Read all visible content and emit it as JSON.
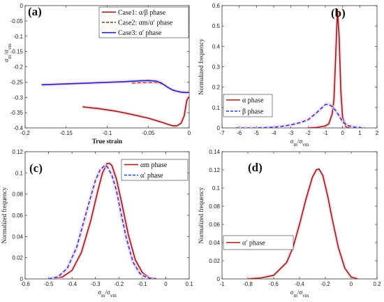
{
  "colors": {
    "dark_red": "#9b1c14",
    "blue_dash": "#1f3fd6",
    "blue": "#2020c8",
    "pink_glow": "#f4c6d8"
  },
  "chart_data": [
    {
      "panel": "(a)",
      "type": "line",
      "xlabel": "True strain",
      "ylabel_num": "σ",
      "ylabel_num_sub": "m",
      "ylabel_den": "/σ",
      "ylabel_den_sub": "vm",
      "xlim": [
        -0.2,
        0
      ],
      "ylim": [
        -0.4,
        0
      ],
      "xticks": [
        -0.2,
        -0.15,
        -0.1,
        -0.05,
        0
      ],
      "xtick_labels": [
        "-0.2",
        "-0.15",
        "-0.1",
        "-0.05",
        "0"
      ],
      "yticks": [
        -0.4,
        -0.35,
        -0.3,
        -0.25,
        -0.2,
        -0.15,
        -0.1,
        -0.05,
        0
      ],
      "ytick_labels": [
        "-0.4",
        "-0.35",
        "-0.3",
        "-0.25",
        "-0.2",
        "-0.15",
        "-0.1",
        "-0.05",
        "0"
      ],
      "legend": [
        {
          "label": "Case1: α/β  phase",
          "color": "#9b1c14",
          "dash": false
        },
        {
          "label": "Case2: αm/α′ phase",
          "color": "#7a3010",
          "dash": true
        },
        {
          "label": "Case3:   α′  phase",
          "color": "#2020c8",
          "dash": false
        }
      ],
      "series": [
        {
          "name": "Case1: α/β  phase",
          "color": "#9b1c14",
          "dash": false,
          "x": [
            -0.13,
            -0.11,
            -0.09,
            -0.07,
            -0.05,
            -0.035,
            -0.025,
            -0.02,
            -0.015,
            -0.01,
            -0.006,
            -0.003,
            0
          ],
          "y": [
            -0.331,
            -0.337,
            -0.345,
            -0.356,
            -0.368,
            -0.38,
            -0.389,
            -0.393,
            -0.393,
            -0.385,
            -0.36,
            -0.31,
            -0.298
          ]
        },
        {
          "name": "Case2: αm/α′ phase",
          "color": "#7a3010",
          "dash": true,
          "x": [
            -0.07,
            -0.06,
            -0.05,
            -0.04,
            -0.032
          ],
          "y": [
            -0.253,
            -0.252,
            -0.251,
            -0.252,
            -0.256
          ]
        },
        {
          "name": "Case3:   α′  phase",
          "color": "#2020c8",
          "dash": false,
          "x": [
            -0.18,
            -0.16,
            -0.14,
            -0.12,
            -0.1,
            -0.08,
            -0.06,
            -0.05,
            -0.04,
            -0.035,
            -0.03,
            -0.025,
            -0.02,
            -0.015,
            -0.01,
            -0.005,
            0
          ],
          "y": [
            -0.259,
            -0.257,
            -0.255,
            -0.253,
            -0.251,
            -0.249,
            -0.246,
            -0.245,
            -0.247,
            -0.252,
            -0.26,
            -0.269,
            -0.276,
            -0.28,
            -0.283,
            -0.284,
            -0.284
          ]
        }
      ]
    },
    {
      "panel": "(b)",
      "type": "line",
      "xlabel_num": "σ",
      "xlabel_num_sub": "m",
      "xlabel_den": "/σ",
      "xlabel_den_sub": "vm",
      "ylabel": "Normalized frequency",
      "xlim": [
        -7,
        2
      ],
      "ylim": [
        0,
        0.6
      ],
      "xticks": [
        -7,
        -6,
        -5,
        -4,
        -3,
        -2,
        -1,
        0,
        1,
        2
      ],
      "xtick_labels": [
        "-7",
        "-6",
        "-5",
        "-4",
        "-3",
        "-2",
        "-1",
        "0",
        "1",
        "2"
      ],
      "yticks": [
        0,
        0.1,
        0.2,
        0.3,
        0.4,
        0.5,
        0.6
      ],
      "ytick_labels": [
        "0",
        "0.1",
        "0.2",
        "0.3",
        "0.4",
        "0.5",
        "0.6"
      ],
      "legend": [
        {
          "label": "α phase",
          "color": "#9b1c14",
          "dash": false
        },
        {
          "label": "β phase",
          "color": "#1f3fd6",
          "dash": true
        }
      ],
      "series": [
        {
          "name": "α phase",
          "color": "#9b1c14",
          "dash": false,
          "x": [
            -2.0,
            -1.5,
            -1.0,
            -0.8,
            -0.6,
            -0.5,
            -0.4,
            -0.3,
            -0.2,
            -0.1,
            0.0,
            0.2,
            0.5
          ],
          "y": [
            0,
            0.002,
            0.01,
            0.02,
            0.07,
            0.14,
            0.35,
            0.58,
            0.45,
            0.18,
            0.05,
            0.005,
            0
          ]
        },
        {
          "name": "β phase",
          "color": "#1f3fd6",
          "dash": true,
          "x": [
            -6.2,
            -5.0,
            -4.0,
            -3.5,
            -3.0,
            -2.5,
            -2.0,
            -1.5,
            -1.0,
            -0.8,
            -0.6,
            -0.4,
            -0.2,
            0.0,
            0.3,
            0.6,
            1.0,
            1.3
          ],
          "y": [
            0,
            0,
            0.003,
            0.008,
            0.015,
            0.025,
            0.04,
            0.075,
            0.115,
            0.115,
            0.105,
            0.085,
            0.06,
            0.03,
            0.012,
            0.005,
            0.001,
            0
          ]
        }
      ]
    },
    {
      "panel": "(c)",
      "type": "line",
      "xlabel_num": "σ",
      "xlabel_num_sub": "m",
      "xlabel_den": "/σ",
      "xlabel_den_sub": "vm",
      "ylabel": "Normalized frequency",
      "xlim": [
        -0.6,
        0.1
      ],
      "ylim": [
        0,
        0.12
      ],
      "xticks": [
        -0.6,
        -0.5,
        -0.4,
        -0.3,
        -0.2,
        -0.1,
        0,
        0.1
      ],
      "xtick_labels": [
        "-0.6",
        "-0.5",
        "-0.4",
        "-0.3",
        "-0.2",
        "-0.1",
        "0",
        "0.1"
      ],
      "yticks": [
        0,
        0.02,
        0.04,
        0.06,
        0.08,
        0.1,
        0.12
      ],
      "ytick_labels": [
        "0",
        "0.02",
        "0.04",
        "0.06",
        "0.08",
        "0.1",
        "0.12"
      ],
      "legend": [
        {
          "label": "αm phase",
          "color": "#9b1c14",
          "dash": false
        },
        {
          "label": "α′  phase",
          "color": "#1f3fd6",
          "dash": true
        }
      ],
      "series": [
        {
          "name": "αm phase",
          "color": "#9b1c14",
          "dash": false,
          "x": [
            -0.48,
            -0.44,
            -0.4,
            -0.36,
            -0.32,
            -0.29,
            -0.27,
            -0.25,
            -0.24,
            -0.23,
            -0.21,
            -0.19,
            -0.16,
            -0.13,
            -0.1,
            -0.07,
            -0.04
          ],
          "y": [
            0,
            0.002,
            0.008,
            0.025,
            0.055,
            0.083,
            0.1,
            0.109,
            0.109,
            0.107,
            0.094,
            0.074,
            0.042,
            0.018,
            0.006,
            0.001,
            0
          ]
        },
        {
          "name": "α′  phase",
          "color": "#1f3fd6",
          "dash": true,
          "x": [
            -0.5,
            -0.46,
            -0.42,
            -0.38,
            -0.34,
            -0.3,
            -0.28,
            -0.26,
            -0.25,
            -0.23,
            -0.21,
            -0.19,
            -0.17,
            -0.14,
            -0.11,
            -0.08,
            -0.05
          ],
          "y": [
            0,
            0.002,
            0.01,
            0.03,
            0.062,
            0.093,
            0.103,
            0.107,
            0.106,
            0.098,
            0.083,
            0.061,
            0.04,
            0.016,
            0.005,
            0.001,
            0
          ]
        }
      ]
    },
    {
      "panel": "(d)",
      "type": "line",
      "xlabel_num": "σ",
      "xlabel_num_sub": "m",
      "xlabel_den": "/σ",
      "xlabel_den_sub": "vm",
      "ylabel": "Normalized frequency",
      "xlim": [
        -1,
        0.2
      ],
      "ylim": [
        0,
        0.14
      ],
      "xticks": [
        -1,
        -0.8,
        -0.6,
        -0.4,
        -0.2,
        0,
        0.2
      ],
      "xtick_labels": [
        "-1",
        "-0.8",
        "-0.6",
        "-0.4",
        "-0.2",
        "0",
        "0.2"
      ],
      "yticks": [
        0,
        0.02,
        0.04,
        0.06,
        0.08,
        0.1,
        0.12,
        0.14
      ],
      "ytick_labels": [
        "0",
        "0.02",
        "0.04",
        "0.06",
        "0.08",
        "0.1",
        "0.12",
        "0.14"
      ],
      "legend": [
        {
          "label": "α′  phase",
          "color": "#9b1c14",
          "dash": false
        }
      ],
      "series": [
        {
          "name": "α′  phase",
          "color": "#9b1c14",
          "dash": false,
          "x": [
            -0.8,
            -0.7,
            -0.6,
            -0.5,
            -0.45,
            -0.4,
            -0.35,
            -0.3,
            -0.27,
            -0.25,
            -0.22,
            -0.18,
            -0.15,
            -0.1,
            -0.05,
            0.0,
            0.05
          ],
          "y": [
            0,
            0.001,
            0.004,
            0.018,
            0.035,
            0.06,
            0.088,
            0.112,
            0.12,
            0.121,
            0.114,
            0.09,
            0.068,
            0.035,
            0.012,
            0.002,
            0
          ]
        }
      ]
    }
  ]
}
